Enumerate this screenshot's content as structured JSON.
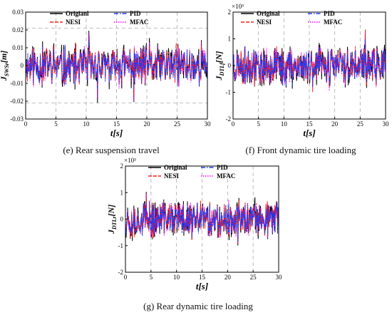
{
  "panels": [
    {
      "id": "e",
      "caption": "(e) Rear suspension travel",
      "xlabel": "t[s]",
      "ylabel_main": "J",
      "ylabel_sub": "SWSr",
      "ylabel_unit": "[m]",
      "multiplier": "",
      "xlim": [
        0,
        30
      ],
      "ylim": [
        -0.03,
        0.03
      ],
      "xticks": [
        "0",
        "5",
        "10",
        "15",
        "20",
        "25",
        "30"
      ],
      "yticks": [
        "-0.03",
        "-0.02",
        "-0.01",
        "0",
        "0.01",
        "0.02",
        "0.03"
      ],
      "ytick_values": [
        -0.03,
        -0.02,
        -0.01,
        0,
        0.01,
        0.02,
        0.03
      ],
      "dashed_y": [
        0.021,
        -0.021
      ],
      "dashed_x": [
        5,
        10,
        15,
        20,
        25
      ],
      "amp": 0.012,
      "peak": 0.026,
      "seed": 11
    },
    {
      "id": "f",
      "caption": "(f) Front dynamic tire loading",
      "xlabel": "t[s]",
      "ylabel_main": "J",
      "ylabel_sub": "DTLf",
      "ylabel_unit": "[N]",
      "multiplier": "×10³",
      "xlim": [
        0,
        30
      ],
      "ylim": [
        -2,
        2
      ],
      "xticks": [
        "0",
        "5",
        "10",
        "15",
        "20",
        "25",
        "30"
      ],
      "yticks": [
        "-2",
        "-1",
        "0",
        "1",
        "2"
      ],
      "ytick_values": [
        -2,
        -1,
        0,
        1,
        2
      ],
      "dashed_y": [],
      "dashed_x": [
        5,
        10,
        15,
        20,
        25
      ],
      "amp": 0.75,
      "peak": 1.8,
      "seed": 23
    },
    {
      "id": "g",
      "caption": "(g) Rear dynamic tire loading",
      "xlabel": "t[s]",
      "ylabel_main": "J",
      "ylabel_sub": "DTLr",
      "ylabel_unit": "[N]",
      "multiplier": "×10³",
      "xlim": [
        0,
        30
      ],
      "ylim": [
        -2,
        2
      ],
      "xticks": [
        "0",
        "5",
        "10",
        "15",
        "20",
        "25",
        "30"
      ],
      "yticks": [
        "-2",
        "-1",
        "0",
        "1",
        "2"
      ],
      "ytick_values": [
        -2,
        -1,
        0,
        1,
        2
      ],
      "dashed_y": [],
      "dashed_x": [
        5,
        10,
        15,
        20,
        25
      ],
      "amp": 0.7,
      "peak": 1.4,
      "seed": 37
    }
  ],
  "legend": {
    "e": [
      "Origianl",
      "PID",
      "NESI",
      "MFAC"
    ],
    "f": [
      "Original",
      "PID",
      "NESI",
      "MFAC"
    ],
    "g": [
      "Original",
      "PID",
      "NESI",
      "MFAC"
    ]
  },
  "series_style": [
    {
      "key": "original",
      "color": "#000000",
      "dash": ""
    },
    {
      "key": "pid",
      "color": "#1f3cff",
      "dash": "6,2,1.5,2"
    },
    {
      "key": "nesi",
      "color": "#ff1a1a",
      "dash": "5,2"
    },
    {
      "key": "mfac",
      "color": "#ff00ff",
      "dash": "1.5,1.5"
    }
  ],
  "chart_data": [
    {
      "type": "line",
      "title": "",
      "xlabel": "t[s]",
      "ylabel": "J_SWSr [m]",
      "xlim": [
        0,
        30
      ],
      "ylim": [
        -0.03,
        0.03
      ],
      "grid": false,
      "legend": "top",
      "series": [
        {
          "name": "Origianl",
          "description_range": [
            -0.024,
            0.026
          ]
        },
        {
          "name": "PID",
          "description_range": [
            -0.02,
            0.022
          ]
        },
        {
          "name": "NESI",
          "description_range": [
            -0.019,
            0.02
          ]
        },
        {
          "name": "MFAC",
          "description_range": [
            -0.018,
            0.019
          ]
        }
      ]
    },
    {
      "type": "line",
      "title": "",
      "xlabel": "t[s]",
      "ylabel": "J_DTLf [N] (×10³)",
      "xlim": [
        0,
        30
      ],
      "ylim": [
        -2,
        2
      ],
      "grid": false,
      "legend": "top",
      "series": [
        {
          "name": "Original",
          "description_range": [
            -1.8,
            1.8
          ]
        },
        {
          "name": "PID",
          "description_range": [
            -1.3,
            1.4
          ]
        },
        {
          "name": "NESI",
          "description_range": [
            -1.5,
            1.5
          ]
        },
        {
          "name": "MFAC",
          "description_range": [
            -1.8,
            1.6
          ]
        }
      ]
    },
    {
      "type": "line",
      "title": "",
      "xlabel": "t[s]",
      "ylabel": "J_DTLr [N] (×10³)",
      "xlim": [
        0,
        30
      ],
      "ylim": [
        -2,
        2
      ],
      "grid": false,
      "legend": "top",
      "series": [
        {
          "name": "Original",
          "description_range": [
            -1.5,
            1.4
          ]
        },
        {
          "name": "PID",
          "description_range": [
            -1.2,
            1.2
          ]
        },
        {
          "name": "NESI",
          "description_range": [
            -1.3,
            1.2
          ]
        },
        {
          "name": "MFAC",
          "description_range": [
            -1.4,
            1.3
          ]
        }
      ]
    }
  ]
}
